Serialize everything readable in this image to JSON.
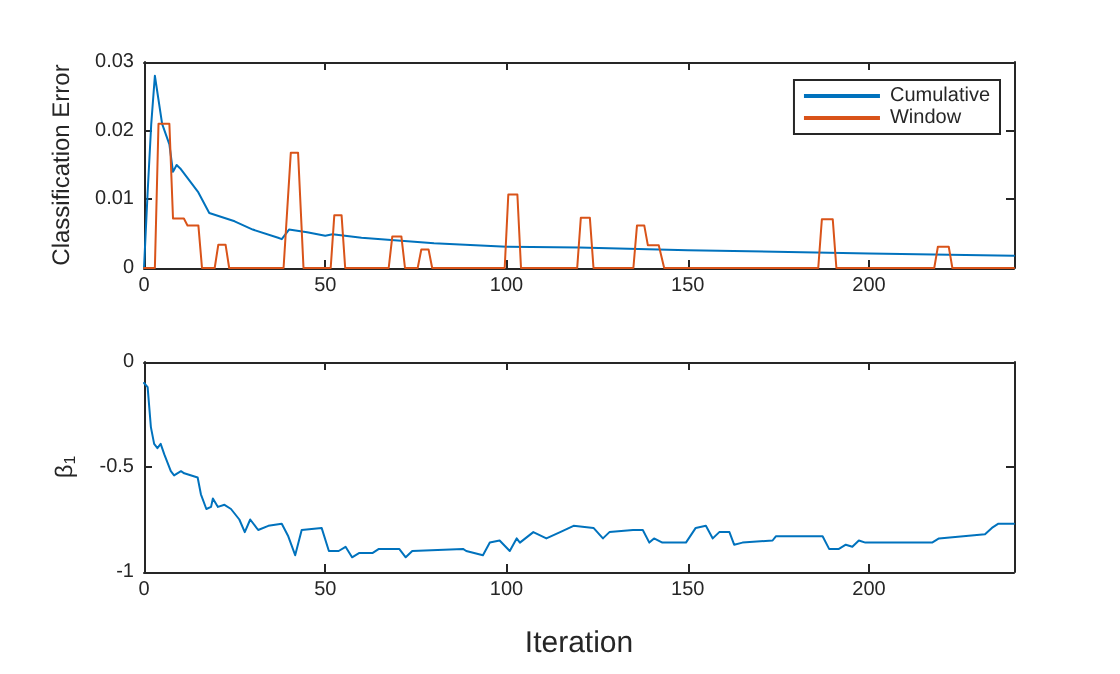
{
  "chart_data": [
    {
      "type": "line",
      "ylabel": "Classification Error",
      "xlim": [
        0,
        240
      ],
      "xticks": [
        0,
        50,
        100,
        150,
        200
      ],
      "ylim": [
        0,
        0.03
      ],
      "yticks": [
        0,
        0.01,
        0.02,
        0.03
      ],
      "grid": false,
      "legend": "top right",
      "marker": "none",
      "line_style": "solid",
      "series": [
        {
          "name": "Cumulative",
          "color": "#0072bd",
          "x": [
            0,
            1,
            2,
            3,
            5,
            7,
            8,
            9,
            10,
            15,
            18,
            25,
            30,
            37,
            38,
            40,
            45,
            50,
            52,
            60,
            70,
            80,
            100,
            120,
            150,
            200,
            240
          ],
          "values": [
            0,
            0.011,
            0.021,
            0.028,
            0.021,
            0.018,
            0.014,
            0.015,
            0.0145,
            0.011,
            0.008,
            0.0068,
            0.0056,
            0.0044,
            0.0042,
            0.0056,
            0.0052,
            0.0047,
            0.0049,
            0.0044,
            0.004,
            0.0036,
            0.0031,
            0.003,
            0.0026,
            0.0021,
            0.0018
          ]
        },
        {
          "name": "Window",
          "color": "#d95319",
          "x": [
            0,
            3,
            4,
            7,
            8,
            11,
            12,
            15,
            16,
            19.5,
            20.5,
            22.5,
            23.5,
            38.5,
            40.5,
            42.5,
            44,
            51.5,
            52.5,
            54.5,
            55.5,
            67.5,
            68.5,
            71,
            72,
            75.5,
            76.5,
            78.5,
            79.5,
            99.5,
            100.5,
            103,
            104,
            119.5,
            120.5,
            123,
            124,
            135,
            136,
            138,
            139,
            142,
            143.5,
            186,
            187,
            190,
            191,
            218,
            219,
            222,
            223,
            240
          ],
          "values": [
            0,
            0,
            0.021,
            0.021,
            0.0072,
            0.0072,
            0.0062,
            0.0062,
            0,
            0,
            0.0034,
            0.0034,
            0,
            0,
            0.0168,
            0.0168,
            0,
            0,
            0.0077,
            0.0077,
            0,
            0,
            0.0046,
            0.0046,
            0,
            0,
            0.0027,
            0.0027,
            0,
            0,
            0.0107,
            0.0107,
            0,
            0,
            0.0073,
            0.0073,
            0,
            0,
            0.0062,
            0.0062,
            0.0033,
            0.0033,
            0,
            0,
            0.0071,
            0.0071,
            0,
            0,
            0.0031,
            0.0031,
            0,
            0
          ]
        }
      ]
    },
    {
      "type": "line",
      "xlabel": "Iteration",
      "ylabel": "β$_{1}$",
      "xlim": [
        0,
        240
      ],
      "xticks": [
        0,
        50,
        100,
        150,
        200
      ],
      "ylim": [
        -1,
        0
      ],
      "yticks": [
        -1,
        -0.5,
        0
      ],
      "grid": false,
      "marker": "none",
      "line_style": "solid",
      "series": [
        {
          "color": "#0072bd",
          "x": [
            0,
            1,
            1.9,
            2.8,
            3.7,
            4.6,
            5.6,
            7.4,
            8.3,
            10.2,
            11.1,
            14.8,
            15.7,
            17.2,
            18.5,
            19,
            20.4,
            22.2,
            24,
            26.3,
            27.8,
            29.3,
            31.5,
            34.3,
            38,
            39.8,
            41.7,
            43.5,
            49,
            51,
            53.7,
            55.6,
            57.4,
            59.3,
            63,
            64.8,
            70.4,
            72.2,
            74,
            88,
            88.9,
            93.5,
            95.4,
            98.1,
            100.9,
            102.8,
            103.7,
            107.4,
            111,
            114.8,
            118.5,
            124,
            126.6,
            128.4,
            134.9,
            137.6,
            139.4,
            140.7,
            143,
            149.5,
            152.2,
            155,
            156.9,
            158.7,
            161.5,
            162.8,
            165.1,
            173.4,
            174.3,
            187.2,
            189,
            191.7,
            193.6,
            195.4,
            197.2,
            199,
            217.4,
            219.3,
            232,
            233.9,
            235.7,
            240
          ],
          "values": [
            -0.1,
            -0.12,
            -0.31,
            -0.39,
            -0.41,
            -0.39,
            -0.44,
            -0.52,
            -0.54,
            -0.52,
            -0.53,
            -0.55,
            -0.63,
            -0.7,
            -0.69,
            -0.65,
            -0.69,
            -0.68,
            -0.7,
            -0.75,
            -0.81,
            -0.75,
            -0.8,
            -0.78,
            -0.77,
            -0.83,
            -0.92,
            -0.8,
            -0.79,
            -0.9,
            -0.9,
            -0.88,
            -0.93,
            -0.91,
            -0.91,
            -0.89,
            -0.89,
            -0.93,
            -0.9,
            -0.89,
            -0.9,
            -0.92,
            -0.86,
            -0.85,
            -0.9,
            -0.84,
            -0.86,
            -0.81,
            -0.84,
            -0.81,
            -0.78,
            -0.79,
            -0.84,
            -0.81,
            -0.8,
            -0.8,
            -0.86,
            -0.84,
            -0.86,
            -0.86,
            -0.79,
            -0.78,
            -0.84,
            -0.81,
            -0.81,
            -0.87,
            -0.86,
            -0.85,
            -0.83,
            -0.83,
            -0.89,
            -0.89,
            -0.87,
            -0.88,
            -0.85,
            -0.86,
            -0.86,
            -0.84,
            -0.82,
            -0.79,
            -0.77,
            -0.77
          ]
        }
      ]
    }
  ]
}
